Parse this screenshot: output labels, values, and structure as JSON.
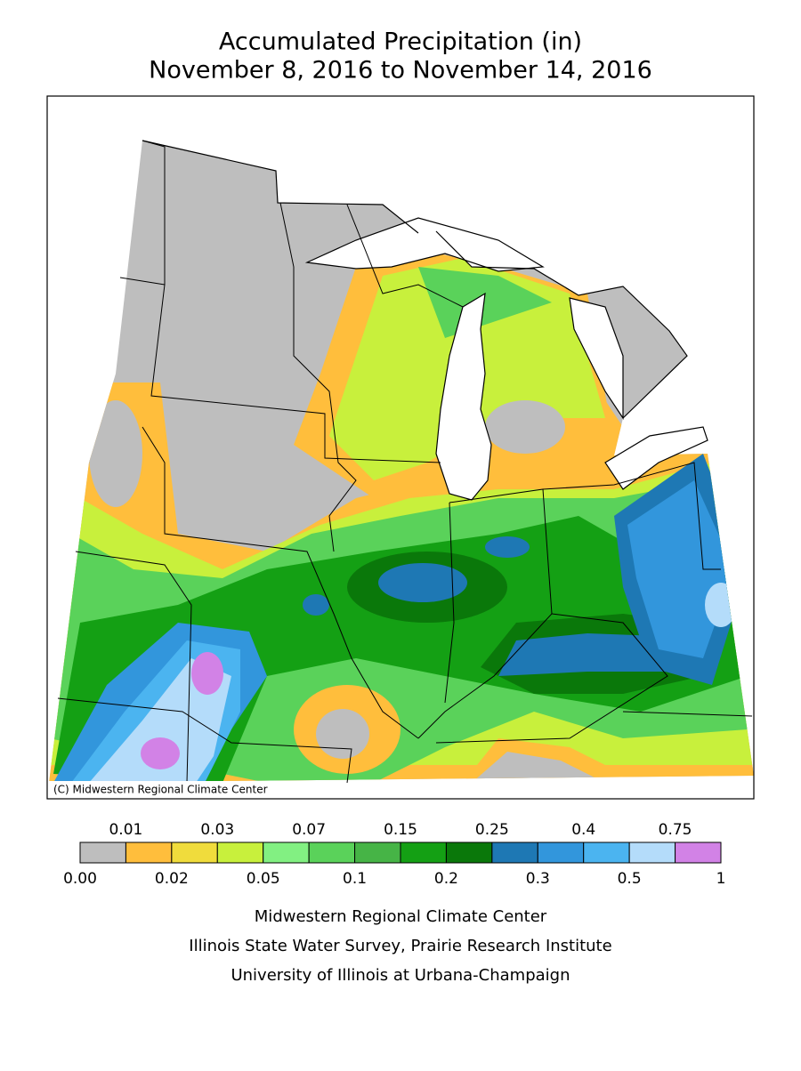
{
  "title": [
    "Accumulated Precipitation (in)",
    "November 8, 2016 to November 14, 2016"
  ],
  "credit": "(C) Midwestern Regional Climate Center",
  "legend": {
    "boundaries": [
      {
        "value": 0,
        "label": "0.00"
      },
      0.01,
      0.02,
      0.03,
      0.05,
      0.07,
      0.1,
      0.15,
      0.2,
      0.25,
      0.3,
      0.4,
      0.5,
      0.75,
      1
    ],
    "colors": [
      "#bebebe",
      "#ffbe3c",
      "#f0dc3c",
      "#c8f03c",
      "#82f082",
      "#5ad25a",
      "#46b446",
      "#14a014",
      "#0a780a",
      "#1e78b4",
      "#3296dc",
      "#4bb4f0",
      "#b4dcfa",
      "#d282e6"
    ]
  },
  "footer": [
    "Midwestern Regional Climate Center",
    "Illinois State Water Survey, Prairie Research Institute",
    "University of Illinois at Urbana-Champaign"
  ]
}
